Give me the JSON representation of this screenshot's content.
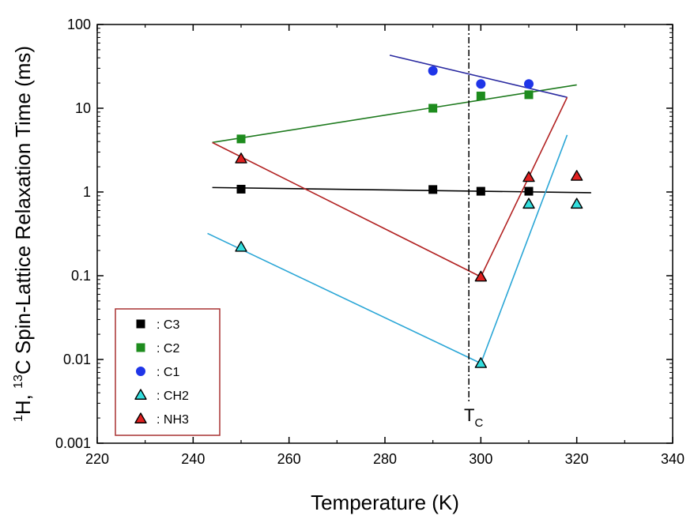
{
  "chart_data": {
    "type": "scatter",
    "x_axis": {
      "label": "Temperature (K)",
      "range": [
        220,
        340
      ],
      "ticks": [
        220,
        240,
        260,
        280,
        300,
        320,
        340
      ],
      "tick_labels": [
        "220",
        "240",
        "260",
        "280",
        "300",
        "320",
        "340"
      ]
    },
    "y_axis": {
      "label_sup1": "1",
      "label_part1": "H, ",
      "label_sup2": "13",
      "label_part2": "C Spin-Lattice Relaxation Time (ms)",
      "scale": "log",
      "range": [
        0.001,
        100
      ],
      "ticks": [
        0.001,
        0.01,
        0.1,
        1,
        10,
        100
      ],
      "tick_labels": [
        "0.001",
        "0.01",
        "0.1",
        "1",
        "10",
        "100"
      ]
    },
    "grid": false,
    "legend_position": "bottom-left",
    "series": [
      {
        "name": "C3",
        "legend_label": ": C3",
        "marker": "square",
        "color": "#000000",
        "edge": "#000000",
        "x": [
          250,
          290,
          300,
          310
        ],
        "y": [
          1.08,
          1.07,
          1.02,
          1.02
        ]
      },
      {
        "name": "C2",
        "legend_label": ": C2",
        "marker": "square",
        "color": "#1e8c1e",
        "edge": "#1e8c1e",
        "x": [
          250,
          290,
          300,
          310
        ],
        "y": [
          4.3,
          10.0,
          14.0,
          14.5
        ]
      },
      {
        "name": "C1",
        "legend_label": ": C1",
        "marker": "circle",
        "color": "#1f35e8",
        "edge": "#1f35e8",
        "x": [
          290,
          300,
          310
        ],
        "y": [
          28,
          19.5,
          19.5
        ]
      },
      {
        "name": "CH2",
        "legend_label": ": CH2",
        "marker": "triangle",
        "color": "#33dede",
        "edge": "#000000",
        "x": [
          250,
          300,
          310,
          320
        ],
        "y": [
          0.22,
          0.009,
          0.72,
          0.72
        ]
      },
      {
        "name": "NH3",
        "legend_label": ": NH3",
        "marker": "triangle",
        "color": "#e02020",
        "edge": "#000000",
        "x": [
          250,
          300,
          310,
          320
        ],
        "y": [
          2.5,
          0.097,
          1.5,
          1.55
        ]
      }
    ],
    "fit_lines": [
      {
        "series": "C3",
        "color": "#000000",
        "x": [
          244,
          323
        ],
        "y": [
          1.13,
          0.98
        ]
      },
      {
        "series": "C2",
        "color": "#1e7a1e",
        "x": [
          244,
          320
        ],
        "y": [
          3.9,
          19
        ]
      },
      {
        "series": "C1",
        "color": "#2a2aa0",
        "x": [
          281,
          318
        ],
        "y": [
          43,
          13.5
        ]
      },
      {
        "series": "CH2",
        "color": "#2aa6d6",
        "x": [
          243,
          300
        ],
        "y": [
          0.32,
          0.009
        ]
      },
      {
        "series": "CH2",
        "color": "#2aa6d6",
        "x": [
          300,
          318
        ],
        "y": [
          0.009,
          4.8
        ]
      },
      {
        "series": "NH3",
        "color": "#b22222",
        "x": [
          244,
          300
        ],
        "y": [
          3.9,
          0.097
        ]
      },
      {
        "series": "NH3",
        "color": "#b22222",
        "x": [
          300,
          318
        ],
        "y": [
          0.097,
          13.5
        ]
      }
    ],
    "reference_line": {
      "x": 297.5,
      "label_main": "T",
      "label_sub": "C",
      "style": "dash-dot"
    },
    "legend_border_color": "#a83232"
  }
}
